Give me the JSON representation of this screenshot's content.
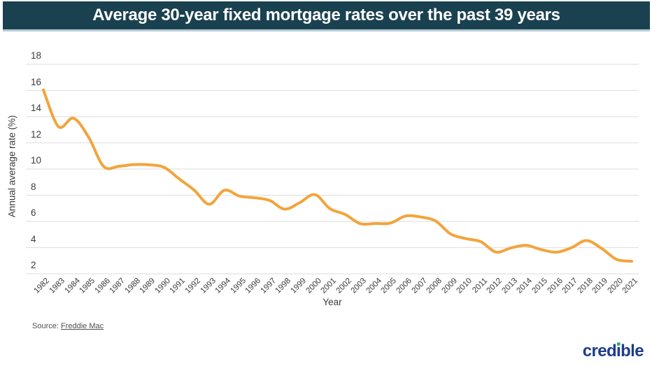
{
  "header": {
    "title": "Average 30-year fixed mortgage rates over the past 39 years"
  },
  "source": {
    "prefix": "Source: ",
    "link_text": "Freddie Mac"
  },
  "logo": {
    "pre": "cred",
    "dotless_i": "ı",
    "post": "ble"
  },
  "colors": {
    "title_bar_bg": "#1a4150",
    "title_bar_border": "#b3c9d3",
    "line": "#F2A43C",
    "gridline": "#e2e2e2",
    "tick_text": "#3b3b3b",
    "logo_blue": "#1d3c8f",
    "logo_dot_green": "#35a96f"
  },
  "chart_data": {
    "type": "line",
    "title": "Average 30-year fixed mortgage rates over the past 39 years",
    "xlabel": "Year",
    "ylabel": "Annual average rate (%)",
    "x": [
      1982,
      1983,
      1984,
      1985,
      1986,
      1987,
      1988,
      1989,
      1990,
      1991,
      1992,
      1993,
      1994,
      1995,
      1996,
      1997,
      1998,
      1999,
      2000,
      2001,
      2002,
      2003,
      2004,
      2005,
      2006,
      2007,
      2008,
      2009,
      2010,
      2011,
      2012,
      2013,
      2014,
      2015,
      2016,
      2017,
      2018,
      2019,
      2020,
      2021
    ],
    "series": [
      {
        "name": "Average 30-year fixed mortgage rate",
        "values": [
          16.04,
          13.24,
          13.88,
          12.43,
          10.19,
          10.21,
          10.34,
          10.32,
          10.13,
          9.25,
          8.39,
          7.31,
          8.38,
          7.93,
          7.81,
          7.6,
          6.94,
          7.44,
          8.05,
          6.97,
          6.54,
          5.83,
          5.84,
          5.87,
          6.41,
          6.34,
          6.03,
          5.04,
          4.69,
          4.45,
          3.66,
          3.98,
          4.17,
          3.85,
          3.65,
          3.99,
          4.54,
          3.94,
          3.1,
          2.96
        ]
      }
    ],
    "ylim": [
      2,
      18
    ],
    "ytick_step": 2,
    "grid": "horizontal",
    "legend": "none",
    "line_color": "#F2A43C",
    "smoothing": "spline"
  }
}
